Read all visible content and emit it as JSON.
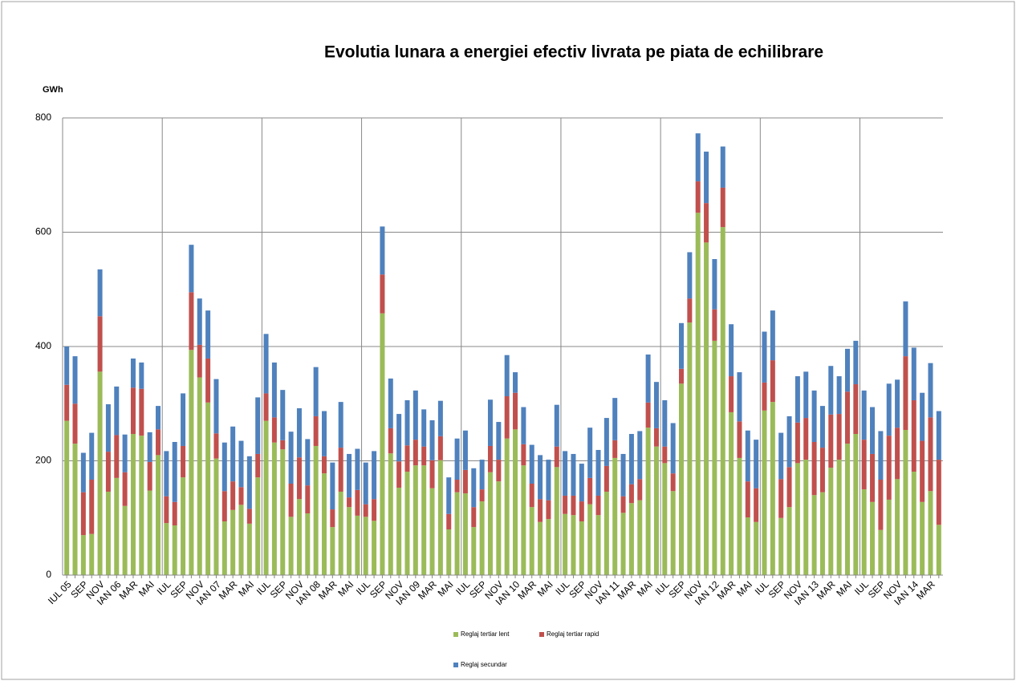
{
  "chart_data": {
    "type": "stacked_bar",
    "title": "Evolutia lunara a energiei efectiv livrata pe piata de echilibrare",
    "y_label": "GWh",
    "categories": [
      "IUL 05",
      null,
      "SEP",
      null,
      "NOV",
      null,
      "IAN 06",
      null,
      "MAR",
      null,
      "MAI",
      null,
      "IUL",
      null,
      "SEP",
      null,
      "NOV",
      null,
      "IAN 07",
      null,
      "MAR",
      null,
      "MAI",
      null,
      "IUL",
      null,
      "SEP",
      null,
      "NOV",
      null,
      "IAN 08",
      null,
      "MAR",
      null,
      "MAI",
      null,
      "IUL",
      null,
      "SEP",
      null,
      "NOV",
      null,
      "IAN 09",
      null,
      "MAR",
      null,
      "MAI",
      null,
      "IUL",
      null,
      "SEP",
      null,
      "NOV",
      null,
      "IAN 10",
      null,
      "MAR",
      null,
      "MAI",
      null,
      "IUL",
      null,
      "SEP",
      null,
      "NOV",
      null,
      "IAN 11",
      null,
      "MAR",
      null,
      "MAI",
      null,
      "IUL",
      null,
      "SEP",
      null,
      "NOV",
      null,
      "IAN 12",
      null,
      "MAR",
      null,
      "MAI",
      null,
      "IUL",
      null,
      "SEP",
      null,
      "NOV",
      null,
      "IAN 13",
      null,
      "MAR",
      null,
      "MAI",
      null,
      "IUL",
      null,
      "SEP",
      null,
      "NOV",
      null,
      "IAN 14",
      null,
      "MAR",
      null
    ],
    "series": [
      {
        "name": "Reglaj tertiar lent",
        "color": "#9bbb59",
        "values": [
          270,
          230,
          70,
          72,
          356,
          146,
          170,
          121,
          247,
          244,
          148,
          210,
          91,
          87,
          171,
          394,
          346,
          302,
          204,
          94,
          114,
          123,
          90,
          171,
          270,
          232,
          220,
          102,
          133,
          108,
          226,
          178,
          84,
          146,
          119,
          104,
          102,
          95,
          458,
          213,
          153,
          181,
          192,
          192,
          152,
          201,
          80,
          145,
          143,
          84,
          129,
          180,
          164,
          239,
          255,
          192,
          119,
          93,
          98,
          189,
          107,
          105,
          94,
          124,
          105,
          146,
          205,
          109,
          126,
          131,
          258,
          225,
          196,
          147,
          335,
          442,
          634,
          582,
          410,
          609,
          285,
          205,
          101,
          93,
          288,
          303,
          100,
          119,
          196,
          202,
          140,
          145,
          188,
          202,
          230,
          247,
          150,
          128,
          79,
          132,
          168,
          254,
          181,
          128,
          147,
          88
        ]
      },
      {
        "name": "Reglaj tertiar rapid",
        "color": "#c0504d",
        "values": [
          63,
          70,
          75,
          95,
          97,
          70,
          75,
          59,
          81,
          82,
          50,
          45,
          47,
          41,
          55,
          101,
          57,
          77,
          44,
          53,
          50,
          31,
          26,
          41,
          48,
          44,
          16,
          58,
          73,
          49,
          52,
          30,
          31,
          77,
          17,
          45,
          22,
          38,
          68,
          44,
          46,
          46,
          45,
          33,
          49,
          42,
          27,
          22,
          41,
          35,
          21,
          46,
          38,
          74,
          64,
          37,
          41,
          40,
          33,
          36,
          32,
          34,
          35,
          46,
          34,
          45,
          31,
          29,
          33,
          37,
          44,
          32,
          29,
          31,
          26,
          42,
          55,
          69,
          55,
          69,
          63,
          64,
          63,
          59,
          49,
          73,
          68,
          70,
          71,
          73,
          93,
          78,
          93,
          80,
          91,
          87,
          87,
          84,
          88,
          112,
          90,
          129,
          125,
          107,
          129,
          114
        ]
      },
      {
        "name": "Reglaj secundar",
        "color": "#4f81bd",
        "values": [
          67,
          83,
          69,
          82,
          82,
          83,
          85,
          66,
          51,
          46,
          52,
          41,
          79,
          105,
          92,
          83,
          81,
          84,
          95,
          85,
          96,
          81,
          92,
          99,
          104,
          96,
          88,
          91,
          86,
          81,
          86,
          79,
          82,
          80,
          76,
          72,
          73,
          84,
          84,
          87,
          83,
          79,
          86,
          65,
          70,
          62,
          64,
          72,
          69,
          68,
          52,
          81,
          66,
          72,
          36,
          65,
          68,
          77,
          71,
          73,
          78,
          73,
          66,
          88,
          80,
          84,
          74,
          74,
          88,
          84,
          84,
          81,
          81,
          88,
          80,
          81,
          84,
          90,
          88,
          72,
          91,
          86,
          89,
          85,
          89,
          87,
          81,
          89,
          81,
          81,
          90,
          73,
          85,
          66,
          75,
          76,
          86,
          82,
          85,
          91,
          84,
          96,
          92,
          84,
          95,
          85
        ]
      }
    ],
    "ylim": [
      0,
      800
    ],
    "yticks": [
      0,
      200,
      400,
      600,
      800
    ],
    "grid": true
  }
}
